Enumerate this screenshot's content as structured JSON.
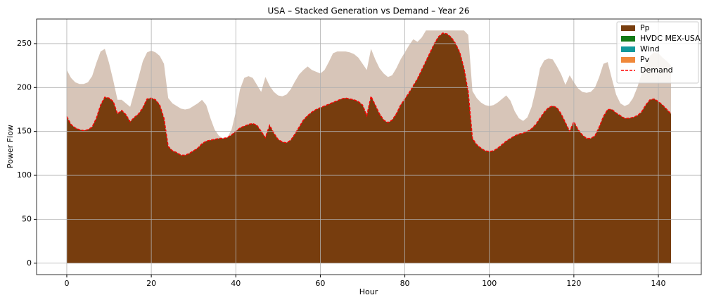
{
  "chart_data": {
    "type": "stacked-area",
    "title": "USA – Stacked Generation vs Demand – Year 26",
    "x_label": "Hour",
    "y_label": "Power Flow",
    "xlim": [
      -7.15,
      150.15
    ],
    "ylim": [
      -13,
      278
    ],
    "xticks": [
      0,
      20,
      40,
      60,
      80,
      100,
      120,
      140
    ],
    "yticks": [
      0,
      50,
      100,
      150,
      200,
      250
    ],
    "grid": true,
    "legend": "upper right",
    "x": [
      0,
      1,
      2,
      3,
      4,
      5,
      6,
      7,
      8,
      9,
      10,
      11,
      12,
      13,
      14,
      15,
      16,
      17,
      18,
      19,
      20,
      21,
      22,
      23,
      24,
      25,
      26,
      27,
      28,
      29,
      30,
      31,
      32,
      33,
      34,
      35,
      36,
      37,
      38,
      39,
      40,
      41,
      42,
      43,
      44,
      45,
      46,
      47,
      48,
      49,
      50,
      51,
      52,
      53,
      54,
      55,
      56,
      57,
      58,
      59,
      60,
      61,
      62,
      63,
      64,
      65,
      66,
      67,
      68,
      69,
      70,
      71,
      72,
      73,
      74,
      75,
      76,
      77,
      78,
      79,
      80,
      81,
      82,
      83,
      84,
      85,
      86,
      87,
      88,
      89,
      90,
      91,
      92,
      93,
      94,
      95,
      96,
      97,
      98,
      99,
      100,
      101,
      102,
      103,
      104,
      105,
      106,
      107,
      108,
      109,
      110,
      111,
      112,
      113,
      114,
      115,
      116,
      117,
      118,
      119,
      120,
      121,
      122,
      123,
      124,
      125,
      126,
      127,
      128,
      129,
      130,
      131,
      132,
      133,
      134,
      135,
      136,
      137,
      138,
      139,
      140,
      141,
      142,
      143
    ],
    "background_area": {
      "color": "#d7c5b8",
      "values": [
        220,
        211,
        206,
        204,
        204,
        206,
        213,
        228,
        241,
        244,
        228,
        208,
        186,
        186,
        182,
        178,
        195,
        212,
        230,
        240,
        242,
        240,
        236,
        227,
        188,
        182,
        179,
        176,
        175,
        176,
        179,
        182,
        186,
        180,
        165,
        152,
        145,
        142,
        143,
        152,
        172,
        198,
        211,
        213,
        211,
        203,
        195,
        212,
        202,
        195,
        191,
        190,
        192,
        198,
        207,
        215,
        220,
        224,
        220,
        218,
        216,
        220,
        229,
        239,
        241,
        241,
        241,
        240,
        238,
        234,
        227,
        220,
        244,
        232,
        222,
        216,
        212,
        214,
        222,
        232,
        240,
        248,
        255,
        252,
        257,
        265,
        265,
        265,
        265,
        265,
        265,
        265,
        265,
        265,
        265,
        260,
        196,
        188,
        183,
        180,
        179,
        180,
        183,
        187,
        191,
        185,
        173,
        165,
        162,
        166,
        178,
        198,
        222,
        231,
        233,
        232,
        224,
        215,
        203,
        214,
        206,
        199,
        195,
        194,
        195,
        200,
        212,
        227,
        229,
        210,
        192,
        182,
        179,
        181,
        188,
        200,
        215,
        228,
        236,
        240,
        239,
        234,
        230,
        225
      ]
    },
    "series": [
      {
        "name": "Pp",
        "color": "#773d0e",
        "kind": "area",
        "values": [
          167,
          158,
          154,
          152,
          151,
          152,
          155,
          165,
          180,
          189,
          188,
          184,
          170,
          174,
          169,
          161,
          166,
          170,
          177,
          187,
          188,
          186,
          180,
          165,
          133,
          128,
          126,
          123,
          123,
          125,
          128,
          131,
          136,
          139,
          140,
          141,
          142,
          142,
          143,
          146,
          150,
          154,
          156,
          158,
          159,
          157,
          150,
          143,
          157,
          148,
          141,
          138,
          137,
          140,
          147,
          155,
          163,
          168,
          172,
          175,
          177,
          179,
          181,
          183,
          185,
          187,
          188,
          187,
          186,
          184,
          180,
          168,
          190,
          180,
          170,
          163,
          160,
          163,
          170,
          180,
          187,
          194,
          202,
          210,
          220,
          230,
          240,
          250,
          258,
          262,
          261,
          257,
          250,
          240,
          222,
          195,
          142,
          135,
          131,
          128,
          127,
          128,
          131,
          135,
          139,
          142,
          145,
          147,
          148,
          150,
          153,
          158,
          165,
          172,
          177,
          179,
          177,
          170,
          160,
          150,
          161,
          152,
          146,
          142,
          142,
          145,
          155,
          167,
          175,
          175,
          171,
          168,
          165,
          165,
          166,
          168,
          172,
          180,
          186,
          187,
          184,
          180,
          175,
          170
        ]
      },
      {
        "name": "HVDC MEX-USA",
        "color": "#127a16",
        "kind": "area",
        "values": [
          0,
          0,
          0,
          0,
          0,
          0,
          0,
          0,
          0,
          0,
          0,
          0,
          0,
          0,
          0,
          0,
          0,
          0,
          0,
          0,
          0,
          0,
          0,
          0,
          0,
          0,
          0,
          0,
          0,
          0,
          0,
          0,
          0,
          0,
          0,
          0,
          0,
          0,
          0,
          0,
          0,
          0,
          0,
          0,
          0,
          0,
          0,
          0,
          0,
          0,
          0,
          0,
          0,
          0,
          0,
          0,
          0,
          0,
          0,
          0,
          0,
          0,
          0,
          0,
          0,
          0,
          0,
          0,
          0,
          0,
          0,
          0,
          0,
          0,
          0,
          0,
          0,
          0,
          0,
          0,
          0,
          0,
          0,
          0,
          0,
          0,
          0,
          0,
          0,
          0,
          0,
          0,
          0,
          0,
          0,
          0,
          0,
          0,
          0,
          0,
          0,
          0,
          0,
          0,
          0,
          0,
          0,
          0,
          0,
          0,
          0,
          0,
          0,
          0,
          0,
          0,
          0,
          0,
          0,
          0,
          0,
          0,
          0,
          0,
          0,
          0,
          0,
          0,
          0,
          0,
          0,
          0,
          0,
          0,
          0,
          0,
          0,
          0,
          0,
          0,
          0,
          0,
          0,
          0
        ]
      },
      {
        "name": "Wind",
        "color": "#11999b",
        "kind": "area",
        "values": [
          0,
          0,
          0,
          0,
          0,
          0,
          0,
          0,
          0,
          0,
          0,
          0,
          0,
          0,
          0,
          0,
          0,
          0,
          0,
          0,
          0,
          0,
          0,
          0,
          0,
          0,
          0,
          0,
          0,
          0,
          0,
          0,
          0,
          0,
          0,
          0,
          0,
          0,
          0,
          0,
          0,
          0,
          0,
          0,
          0,
          0,
          0,
          0,
          0,
          0,
          0,
          0,
          0,
          0,
          0,
          0,
          0,
          0,
          0,
          0,
          0,
          0,
          0,
          0,
          0,
          0,
          0,
          0,
          0,
          0,
          0,
          0,
          0,
          0,
          0,
          0,
          0,
          0,
          0,
          0,
          0,
          0,
          0,
          0,
          0,
          0,
          0,
          0,
          0,
          0,
          0,
          0,
          0,
          0,
          0,
          0,
          0,
          0,
          0,
          0,
          0,
          0,
          0,
          0,
          0,
          0,
          0,
          0,
          0,
          0,
          0,
          0,
          0,
          0,
          0,
          0,
          0,
          0,
          0,
          0,
          0,
          0,
          0,
          0,
          0,
          0,
          0,
          0,
          0,
          0,
          0,
          0,
          0,
          0,
          0,
          0,
          0,
          0,
          0,
          0,
          0,
          0,
          0,
          0
        ]
      },
      {
        "name": "Pv",
        "color": "#f0883a",
        "kind": "area",
        "values": [
          0,
          0,
          0,
          0,
          0,
          0,
          0,
          0,
          0,
          0,
          0,
          0,
          0,
          0,
          0,
          0,
          0,
          0,
          0,
          0,
          0,
          0,
          0,
          0,
          0,
          0,
          0,
          0,
          0,
          0,
          0,
          0,
          0,
          0,
          0,
          0,
          0,
          0,
          0,
          0,
          0,
          0,
          0,
          0,
          0,
          0,
          0,
          0,
          0,
          0,
          0,
          0,
          0,
          0,
          0,
          0,
          0,
          0,
          0,
          0,
          0,
          0,
          0,
          0,
          0,
          0,
          0,
          0,
          0,
          0,
          0,
          0,
          0,
          0,
          0,
          0,
          0,
          0,
          0,
          0,
          0,
          0,
          0,
          0,
          0,
          0,
          0,
          0,
          0,
          0,
          0,
          0,
          0,
          0,
          0,
          0,
          0,
          0,
          0,
          0,
          0,
          0,
          0,
          0,
          0,
          0,
          0,
          0,
          0,
          0,
          0,
          0,
          0,
          0,
          0,
          0,
          0,
          0,
          0,
          0,
          0,
          0,
          0,
          0,
          0,
          0,
          0,
          0,
          0,
          0,
          0,
          0,
          0,
          0,
          0,
          0,
          0,
          0,
          0,
          0,
          0,
          0,
          0,
          0
        ]
      },
      {
        "name": "Demand",
        "color": "#ff0000",
        "kind": "line",
        "style": "dashed",
        "values": [
          167,
          158,
          154,
          152,
          151,
          152,
          155,
          165,
          180,
          189,
          188,
          184,
          170,
          174,
          169,
          161,
          166,
          170,
          177,
          187,
          188,
          186,
          180,
          165,
          133,
          128,
          126,
          123,
          123,
          125,
          128,
          131,
          136,
          139,
          140,
          141,
          142,
          142,
          143,
          146,
          150,
          154,
          156,
          158,
          159,
          157,
          150,
          143,
          157,
          148,
          141,
          138,
          137,
          140,
          147,
          155,
          163,
          168,
          172,
          175,
          177,
          179,
          181,
          183,
          185,
          187,
          188,
          187,
          186,
          184,
          180,
          168,
          190,
          180,
          170,
          163,
          160,
          163,
          170,
          180,
          187,
          194,
          202,
          210,
          220,
          230,
          240,
          250,
          258,
          262,
          261,
          257,
          250,
          240,
          222,
          195,
          142,
          135,
          131,
          128,
          127,
          128,
          131,
          135,
          139,
          142,
          145,
          147,
          148,
          150,
          153,
          158,
          165,
          172,
          177,
          179,
          177,
          170,
          160,
          150,
          161,
          152,
          146,
          142,
          142,
          145,
          155,
          167,
          175,
          175,
          171,
          168,
          165,
          165,
          166,
          168,
          172,
          180,
          186,
          187,
          184,
          180,
          175,
          170
        ]
      }
    ]
  }
}
